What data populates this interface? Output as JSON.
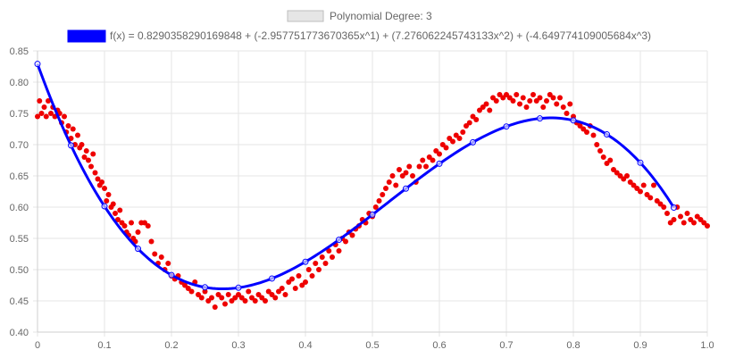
{
  "chart_data": {
    "type": "scatter",
    "legend": [
      {
        "label": "Polynomial Degree: 3",
        "color": "#e6e6e6",
        "border": "#bdbdbd"
      },
      {
        "label": "f(x) = 0.8290358290169848 + (-2.957751773670365x^1) + (7.276062245743133x^2) + (-4.649774109005684x^3)",
        "color": "#0000ff",
        "border": "#0000ff"
      }
    ],
    "xlim": [
      0,
      1
    ],
    "ylim": [
      0.4,
      0.85
    ],
    "x_ticks": [
      0,
      0.1,
      0.2,
      0.3,
      0.4,
      0.5,
      0.6,
      0.7,
      0.8,
      0.9,
      1
    ],
    "x_tick_labels": [
      "0",
      "0.1",
      "0.2",
      "0.3",
      "0.4",
      "0.5",
      "0.6",
      "0.7",
      "0.8",
      "0.9",
      "1.0"
    ],
    "y_ticks": [
      0.4,
      0.45,
      0.5,
      0.55,
      0.6,
      0.65,
      0.7,
      0.75,
      0.8,
      0.85
    ],
    "y_tick_labels": [
      "0.40",
      "0.45",
      "0.50",
      "0.55",
      "0.60",
      "0.65",
      "0.70",
      "0.75",
      "0.80",
      "0.85"
    ],
    "grid": true,
    "fit": {
      "coefficients": [
        0.8290358290169848,
        -2.957751773670365,
        7.276062245743133,
        -4.649774109005684
      ],
      "color": "#0000ff",
      "markers_x": [
        0,
        0.05,
        0.1,
        0.15,
        0.2,
        0.25,
        0.3,
        0.35,
        0.4,
        0.45,
        0.5,
        0.55,
        0.6,
        0.65,
        0.7,
        0.75,
        0.8,
        0.85,
        0.9,
        0.95
      ]
    },
    "points_color": "#ee0000",
    "points": [
      [
        0.0,
        0.745
      ],
      [
        0.003,
        0.77
      ],
      [
        0.006,
        0.75
      ],
      [
        0.01,
        0.76
      ],
      [
        0.013,
        0.745
      ],
      [
        0.016,
        0.77
      ],
      [
        0.02,
        0.75
      ],
      [
        0.023,
        0.76
      ],
      [
        0.026,
        0.745
      ],
      [
        0.03,
        0.755
      ],
      [
        0.033,
        0.75
      ],
      [
        0.036,
        0.735
      ],
      [
        0.04,
        0.745
      ],
      [
        0.043,
        0.72
      ],
      [
        0.046,
        0.73
      ],
      [
        0.05,
        0.71
      ],
      [
        0.053,
        0.725
      ],
      [
        0.056,
        0.7
      ],
      [
        0.06,
        0.715
      ],
      [
        0.063,
        0.695
      ],
      [
        0.066,
        0.7
      ],
      [
        0.07,
        0.68
      ],
      [
        0.073,
        0.69
      ],
      [
        0.076,
        0.675
      ],
      [
        0.08,
        0.665
      ],
      [
        0.083,
        0.685
      ],
      [
        0.086,
        0.655
      ],
      [
        0.09,
        0.645
      ],
      [
        0.093,
        0.635
      ],
      [
        0.096,
        0.64
      ],
      [
        0.1,
        0.63
      ],
      [
        0.103,
        0.61
      ],
      [
        0.106,
        0.62
      ],
      [
        0.11,
        0.6
      ],
      [
        0.113,
        0.605
      ],
      [
        0.116,
        0.59
      ],
      [
        0.12,
        0.58
      ],
      [
        0.123,
        0.595
      ],
      [
        0.126,
        0.575
      ],
      [
        0.13,
        0.57
      ],
      [
        0.133,
        0.56
      ],
      [
        0.136,
        0.555
      ],
      [
        0.14,
        0.575
      ],
      [
        0.143,
        0.55
      ],
      [
        0.146,
        0.545
      ],
      [
        0.15,
        0.56
      ],
      [
        0.155,
        0.575
      ],
      [
        0.16,
        0.575
      ],
      [
        0.165,
        0.57
      ],
      [
        0.17,
        0.545
      ],
      [
        0.175,
        0.525
      ],
      [
        0.18,
        0.51
      ],
      [
        0.185,
        0.52
      ],
      [
        0.19,
        0.5
      ],
      [
        0.195,
        0.51
      ],
      [
        0.2,
        0.49
      ],
      [
        0.205,
        0.485
      ],
      [
        0.21,
        0.49
      ],
      [
        0.215,
        0.48
      ],
      [
        0.22,
        0.475
      ],
      [
        0.225,
        0.47
      ],
      [
        0.23,
        0.465
      ],
      [
        0.235,
        0.48
      ],
      [
        0.24,
        0.46
      ],
      [
        0.245,
        0.455
      ],
      [
        0.25,
        0.465
      ],
      [
        0.255,
        0.45
      ],
      [
        0.26,
        0.455
      ],
      [
        0.265,
        0.44
      ],
      [
        0.27,
        0.46
      ],
      [
        0.275,
        0.455
      ],
      [
        0.28,
        0.445
      ],
      [
        0.285,
        0.46
      ],
      [
        0.29,
        0.45
      ],
      [
        0.295,
        0.455
      ],
      [
        0.3,
        0.46
      ],
      [
        0.305,
        0.455
      ],
      [
        0.31,
        0.45
      ],
      [
        0.315,
        0.465
      ],
      [
        0.32,
        0.455
      ],
      [
        0.325,
        0.45
      ],
      [
        0.33,
        0.46
      ],
      [
        0.335,
        0.455
      ],
      [
        0.34,
        0.45
      ],
      [
        0.345,
        0.465
      ],
      [
        0.35,
        0.46
      ],
      [
        0.355,
        0.455
      ],
      [
        0.36,
        0.465
      ],
      [
        0.365,
        0.47
      ],
      [
        0.37,
        0.46
      ],
      [
        0.375,
        0.48
      ],
      [
        0.38,
        0.485
      ],
      [
        0.385,
        0.47
      ],
      [
        0.39,
        0.49
      ],
      [
        0.395,
        0.475
      ],
      [
        0.4,
        0.48
      ],
      [
        0.405,
        0.5
      ],
      [
        0.41,
        0.49
      ],
      [
        0.415,
        0.51
      ],
      [
        0.42,
        0.5
      ],
      [
        0.425,
        0.52
      ],
      [
        0.43,
        0.51
      ],
      [
        0.435,
        0.53
      ],
      [
        0.44,
        0.52
      ],
      [
        0.445,
        0.54
      ],
      [
        0.45,
        0.53
      ],
      [
        0.455,
        0.55
      ],
      [
        0.46,
        0.545
      ],
      [
        0.465,
        0.56
      ],
      [
        0.47,
        0.555
      ],
      [
        0.475,
        0.565
      ],
      [
        0.48,
        0.57
      ],
      [
        0.485,
        0.58
      ],
      [
        0.49,
        0.575
      ],
      [
        0.495,
        0.59
      ],
      [
        0.5,
        0.585
      ],
      [
        0.505,
        0.6
      ],
      [
        0.51,
        0.61
      ],
      [
        0.515,
        0.62
      ],
      [
        0.52,
        0.63
      ],
      [
        0.525,
        0.64
      ],
      [
        0.53,
        0.65
      ],
      [
        0.535,
        0.635
      ],
      [
        0.54,
        0.66
      ],
      [
        0.545,
        0.65
      ],
      [
        0.55,
        0.655
      ],
      [
        0.555,
        0.665
      ],
      [
        0.56,
        0.65
      ],
      [
        0.565,
        0.64
      ],
      [
        0.57,
        0.665
      ],
      [
        0.575,
        0.675
      ],
      [
        0.58,
        0.665
      ],
      [
        0.585,
        0.68
      ],
      [
        0.59,
        0.675
      ],
      [
        0.595,
        0.69
      ],
      [
        0.6,
        0.685
      ],
      [
        0.605,
        0.7
      ],
      [
        0.61,
        0.695
      ],
      [
        0.615,
        0.71
      ],
      [
        0.62,
        0.705
      ],
      [
        0.625,
        0.715
      ],
      [
        0.63,
        0.71
      ],
      [
        0.635,
        0.72
      ],
      [
        0.64,
        0.73
      ],
      [
        0.645,
        0.735
      ],
      [
        0.65,
        0.745
      ],
      [
        0.655,
        0.74
      ],
      [
        0.66,
        0.755
      ],
      [
        0.665,
        0.76
      ],
      [
        0.67,
        0.765
      ],
      [
        0.675,
        0.755
      ],
      [
        0.68,
        0.775
      ],
      [
        0.685,
        0.77
      ],
      [
        0.69,
        0.78
      ],
      [
        0.695,
        0.775
      ],
      [
        0.7,
        0.78
      ],
      [
        0.705,
        0.775
      ],
      [
        0.71,
        0.77
      ],
      [
        0.715,
        0.78
      ],
      [
        0.72,
        0.765
      ],
      [
        0.725,
        0.775
      ],
      [
        0.73,
        0.76
      ],
      [
        0.735,
        0.77
      ],
      [
        0.74,
        0.78
      ],
      [
        0.745,
        0.77
      ],
      [
        0.75,
        0.775
      ],
      [
        0.755,
        0.76
      ],
      [
        0.76,
        0.77
      ],
      [
        0.765,
        0.78
      ],
      [
        0.77,
        0.775
      ],
      [
        0.775,
        0.765
      ],
      [
        0.78,
        0.775
      ],
      [
        0.785,
        0.76
      ],
      [
        0.79,
        0.75
      ],
      [
        0.795,
        0.765
      ],
      [
        0.8,
        0.745
      ],
      [
        0.805,
        0.735
      ],
      [
        0.81,
        0.73
      ],
      [
        0.815,
        0.725
      ],
      [
        0.82,
        0.72
      ],
      [
        0.825,
        0.73
      ],
      [
        0.83,
        0.715
      ],
      [
        0.835,
        0.7
      ],
      [
        0.84,
        0.69
      ],
      [
        0.845,
        0.68
      ],
      [
        0.85,
        0.67
      ],
      [
        0.855,
        0.675
      ],
      [
        0.86,
        0.66
      ],
      [
        0.865,
        0.655
      ],
      [
        0.87,
        0.65
      ],
      [
        0.875,
        0.645
      ],
      [
        0.88,
        0.65
      ],
      [
        0.885,
        0.64
      ],
      [
        0.89,
        0.635
      ],
      [
        0.895,
        0.63
      ],
      [
        0.9,
        0.625
      ],
      [
        0.905,
        0.635
      ],
      [
        0.91,
        0.62
      ],
      [
        0.915,
        0.615
      ],
      [
        0.92,
        0.635
      ],
      [
        0.925,
        0.61
      ],
      [
        0.93,
        0.605
      ],
      [
        0.935,
        0.6
      ],
      [
        0.94,
        0.59
      ],
      [
        0.945,
        0.575
      ],
      [
        0.95,
        0.58
      ],
      [
        0.955,
        0.6
      ],
      [
        0.96,
        0.585
      ],
      [
        0.965,
        0.575
      ],
      [
        0.97,
        0.59
      ],
      [
        0.975,
        0.58
      ],
      [
        0.98,
        0.575
      ],
      [
        0.985,
        0.585
      ],
      [
        0.99,
        0.58
      ],
      [
        0.995,
        0.575
      ],
      [
        1.0,
        0.57
      ]
    ]
  }
}
